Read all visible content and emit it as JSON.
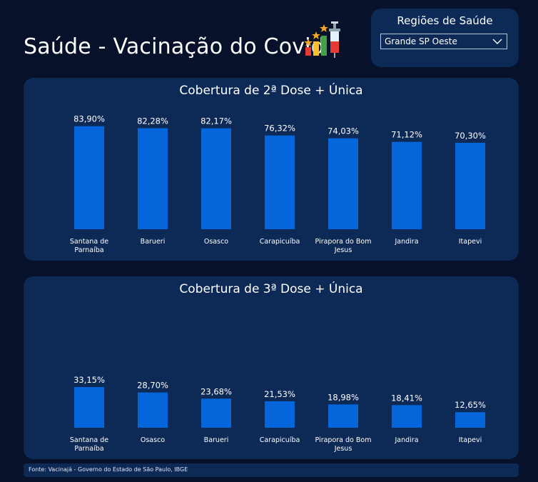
{
  "header": {
    "title": "Saúde - Vacinação do Covid"
  },
  "filter": {
    "label": "Regiões de Saúde",
    "selected": "Grande SP Oeste"
  },
  "colors": {
    "background": "#07122a",
    "card": "#0d2a57",
    "bar": "#0566dc",
    "text": "#ffffff"
  },
  "icons": {
    "logo": "vaccine-chart-icon",
    "dropdown": "chevron-down-icon"
  },
  "footer": {
    "source": "Fonte: Vacinajá - Governo do Estado de São Paulo, IBGE"
  },
  "chart_data": [
    {
      "type": "bar",
      "title": "Cobertura de 2ª Dose + Única",
      "categories": [
        "Santana de Parnaíba",
        "Barueri",
        "Osasco",
        "Carapicuíba",
        "Pirapora do Bom Jesus",
        "Jandira",
        "Itapevi"
      ],
      "values": [
        83.9,
        82.28,
        82.17,
        76.32,
        74.03,
        71.12,
        70.3
      ],
      "value_labels": [
        "83,90%",
        "82,28%",
        "82,17%",
        "76,32%",
        "74,03%",
        "71,12%",
        "70,30%"
      ],
      "xlabel": "",
      "ylabel": "",
      "ylim": [
        0,
        100
      ],
      "grid": false
    },
    {
      "type": "bar",
      "title": "Cobertura de 3ª Dose + Única",
      "categories": [
        "Santana de Parnaíba",
        "Osasco",
        "Barueri",
        "Carapicuíba",
        "Pirapora do Bom Jesus",
        "Jandira",
        "Itapevi"
      ],
      "values": [
        33.15,
        28.7,
        23.68,
        21.53,
        18.98,
        18.41,
        12.65
      ],
      "value_labels": [
        "33,15%",
        "28,70%",
        "23,68%",
        "21,53%",
        "18,98%",
        "18,41%",
        "12,65%"
      ],
      "xlabel": "",
      "ylabel": "",
      "ylim": [
        0,
        100
      ],
      "grid": false
    }
  ]
}
